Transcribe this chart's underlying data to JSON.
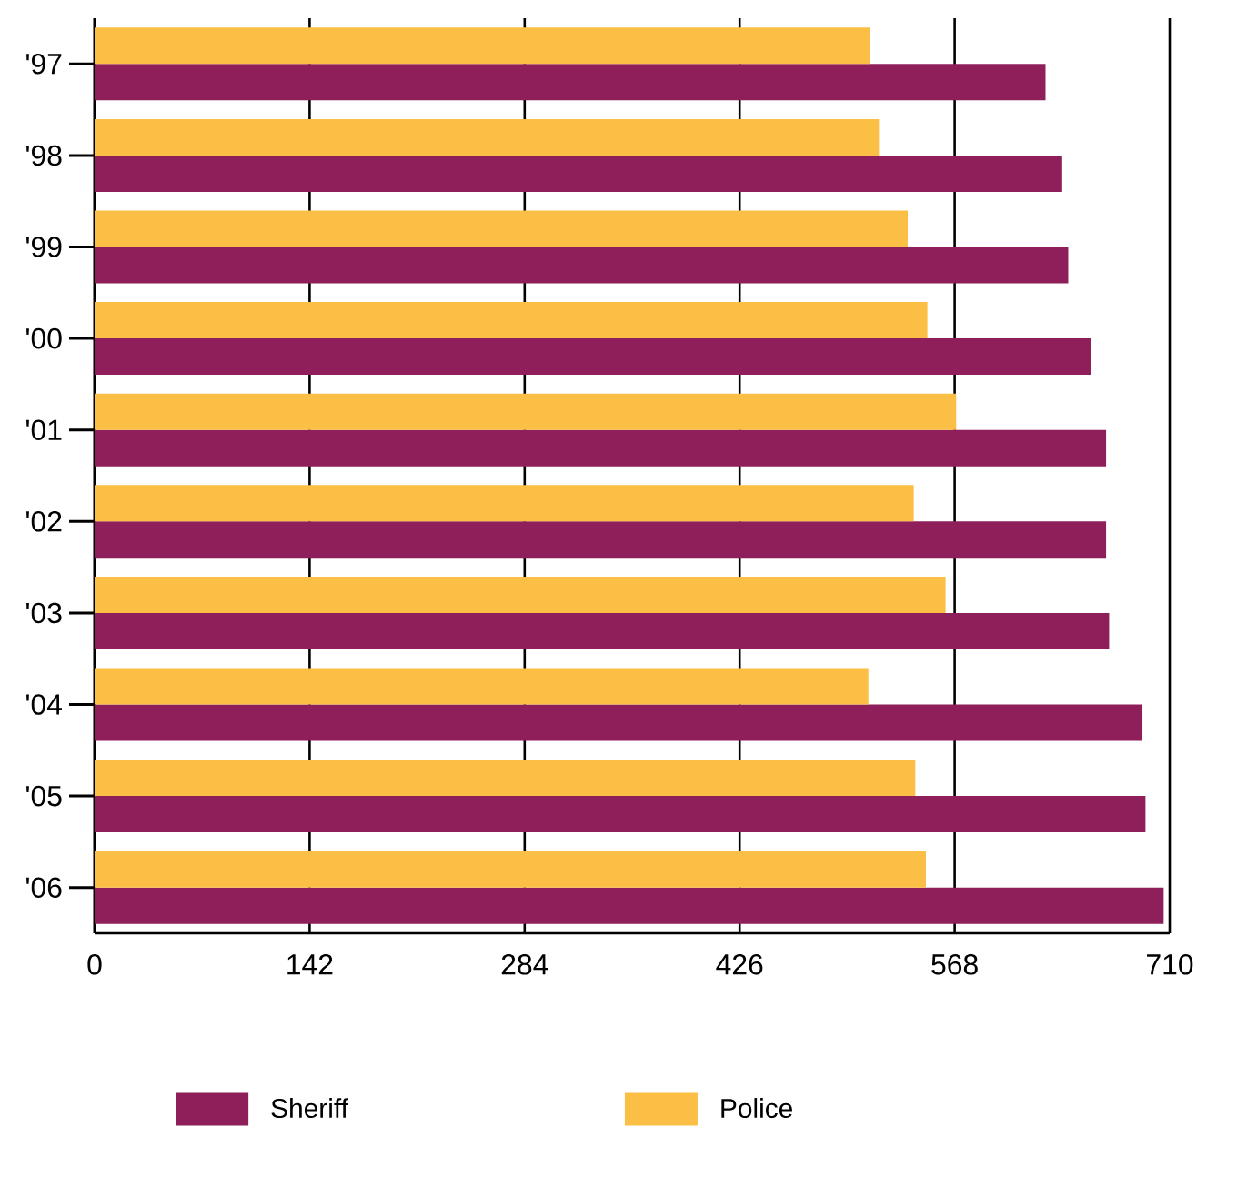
{
  "chart_data": {
    "type": "bar",
    "orientation": "horizontal",
    "categories": [
      "'97",
      "'98",
      "'99",
      "'00",
      "'01",
      "'02",
      "'03",
      "'04",
      "'05",
      "'06"
    ],
    "series": [
      {
        "name": "Sheriff",
        "color": "#8e1f5b",
        "values": [
          628,
          639,
          643,
          658,
          668,
          668,
          670,
          692,
          694,
          706
        ]
      },
      {
        "name": "Police",
        "color": "#fbbf45",
        "values": [
          512,
          518,
          537,
          550,
          569,
          541,
          562,
          511,
          542,
          549
        ]
      }
    ],
    "xlim": [
      0,
      710
    ],
    "xticks": [
      0,
      142,
      284,
      426,
      568,
      710
    ],
    "grid": "x",
    "legend": "bottom"
  }
}
